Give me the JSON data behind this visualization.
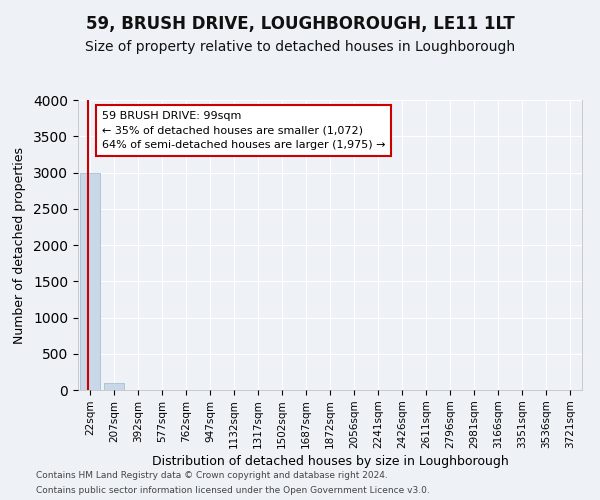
{
  "title": "59, BRUSH DRIVE, LOUGHBOROUGH, LE11 1LT",
  "subtitle": "Size of property relative to detached houses in Loughborough",
  "xlabel": "Distribution of detached houses by size in Loughborough",
  "ylabel": "Number of detached properties",
  "footnote1": "Contains HM Land Registry data © Crown copyright and database right 2024.",
  "footnote2": "Contains public sector information licensed under the Open Government Licence v3.0.",
  "categories": [
    "22sqm",
    "207sqm",
    "392sqm",
    "577sqm",
    "762sqm",
    "947sqm",
    "1132sqm",
    "1317sqm",
    "1502sqm",
    "1687sqm",
    "1872sqm",
    "2056sqm",
    "2241sqm",
    "2426sqm",
    "2611sqm",
    "2796sqm",
    "2981sqm",
    "3166sqm",
    "3351sqm",
    "3536sqm",
    "3721sqm"
  ],
  "bar_heights": [
    3000,
    100,
    0,
    0,
    0,
    0,
    0,
    0,
    0,
    0,
    0,
    0,
    0,
    0,
    0,
    0,
    0,
    0,
    0,
    0,
    0
  ],
  "bar_color": "#c8d8e8",
  "bar_edge_color": "#a8bece",
  "ylim": [
    0,
    4000
  ],
  "yticks": [
    0,
    500,
    1000,
    1500,
    2000,
    2500,
    3000,
    3500,
    4000
  ],
  "property_line_color": "#cc0000",
  "annotation_line1": "59 BRUSH DRIVE: 99sqm",
  "annotation_line2": "← 35% of detached houses are smaller (1,072)",
  "annotation_line3": "64% of semi-detached houses are larger (1,975) →",
  "annotation_box_facecolor": "#ffffff",
  "annotation_box_edgecolor": "#cc0000",
  "bg_color": "#eef2f6",
  "grid_color": "#ffffff",
  "title_fontsize": 12,
  "subtitle_fontsize": 10,
  "xlabel_fontsize": 9,
  "ylabel_fontsize": 9,
  "tick_fontsize": 7.5,
  "footnote_fontsize": 6.5
}
